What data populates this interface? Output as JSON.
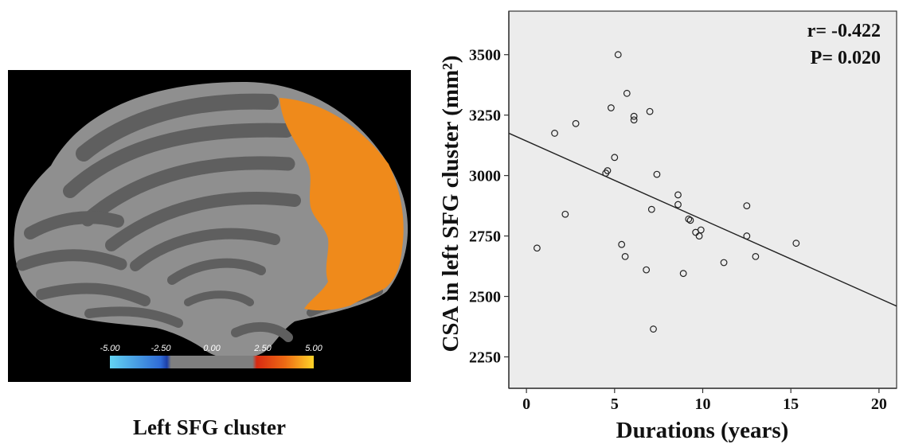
{
  "brain_panel": {
    "caption": "Left SFG cluster",
    "colorbar": {
      "ticks": [
        "-5.00",
        "-2.50",
        "0.00",
        "2.50",
        "5.00"
      ],
      "colors": {
        "low": "#63d3f2",
        "mid_low": "#1c3fa8",
        "neutral": "#7f7f7f",
        "mid_high": "#d92a12",
        "high": "#ffd328"
      }
    },
    "colors": {
      "background": "#000000",
      "cortex_dark": "#5f5f5f",
      "cortex_light": "#8f8f8f",
      "cluster": "#ef8a1b"
    }
  },
  "chart_data": {
    "type": "scatter",
    "title": "",
    "xlabel": "Durations (years)",
    "ylabel": "CSA in left SFG cluster (mm²)",
    "xlim": [
      -1,
      21
    ],
    "ylim": [
      2120,
      3680
    ],
    "xticks": [
      "0",
      "5",
      "10",
      "15",
      "20"
    ],
    "yticks": [
      "2250",
      "2500",
      "2750",
      "3000",
      "3250",
      "3500"
    ],
    "grid": false,
    "background": "#ececec",
    "annotations": [
      {
        "label": "r= -0.422"
      },
      {
        "label": "P= 0.020"
      }
    ],
    "fit_line": {
      "x": [
        -1,
        21
      ],
      "y": [
        3175,
        2460
      ]
    },
    "points": [
      {
        "x": 0.6,
        "y": 2700
      },
      {
        "x": 1.6,
        "y": 3175
      },
      {
        "x": 2.2,
        "y": 2840
      },
      {
        "x": 2.8,
        "y": 3215
      },
      {
        "x": 4.5,
        "y": 3010
      },
      {
        "x": 4.6,
        "y": 3020
      },
      {
        "x": 4.8,
        "y": 3280
      },
      {
        "x": 5.0,
        "y": 3075
      },
      {
        "x": 5.2,
        "y": 3500
      },
      {
        "x": 5.4,
        "y": 2715
      },
      {
        "x": 5.6,
        "y": 2665
      },
      {
        "x": 5.7,
        "y": 3340
      },
      {
        "x": 6.1,
        "y": 3245
      },
      {
        "x": 6.1,
        "y": 3230
      },
      {
        "x": 6.8,
        "y": 2610
      },
      {
        "x": 7.0,
        "y": 3265
      },
      {
        "x": 7.1,
        "y": 2860
      },
      {
        "x": 7.2,
        "y": 2365
      },
      {
        "x": 7.4,
        "y": 3005
      },
      {
        "x": 8.6,
        "y": 2920
      },
      {
        "x": 8.6,
        "y": 2880
      },
      {
        "x": 8.9,
        "y": 2595
      },
      {
        "x": 9.2,
        "y": 2820
      },
      {
        "x": 9.3,
        "y": 2815
      },
      {
        "x": 9.6,
        "y": 2765
      },
      {
        "x": 9.8,
        "y": 2750
      },
      {
        "x": 9.9,
        "y": 2775
      },
      {
        "x": 11.2,
        "y": 2640
      },
      {
        "x": 12.5,
        "y": 2875
      },
      {
        "x": 12.5,
        "y": 2750
      },
      {
        "x": 13.0,
        "y": 2665
      },
      {
        "x": 15.3,
        "y": 2720
      }
    ]
  }
}
